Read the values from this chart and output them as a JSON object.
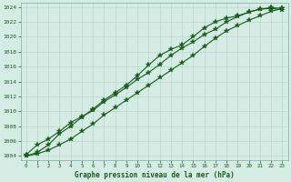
{
  "xlabel": "Graphe pression niveau de la mer (hPa)",
  "xlim": [
    0,
    23
  ],
  "ylim": [
    1004,
    1024
  ],
  "yticks": [
    1004,
    1006,
    1008,
    1010,
    1012,
    1014,
    1016,
    1018,
    1020,
    1022,
    1024
  ],
  "xticks": [
    0,
    1,
    2,
    3,
    4,
    5,
    6,
    7,
    8,
    9,
    10,
    11,
    12,
    13,
    14,
    15,
    16,
    17,
    18,
    19,
    20,
    21,
    22,
    23
  ],
  "bg_color": "#d5ece5",
  "grid_color": "#b8d8cf",
  "line_color": "#1a5c1a",
  "line_width": 0.8,
  "marker": "*",
  "marker_size": 4,
  "series1_x": [
    0,
    1,
    2,
    3,
    4,
    5,
    6,
    7,
    8,
    9,
    10,
    11,
    12,
    13,
    14,
    15,
    16,
    17,
    18,
    19,
    20,
    21,
    22,
    23
  ],
  "series1_y": [
    1004.2,
    1005.5,
    1006.3,
    1007.3,
    1008.5,
    1009.3,
    1010.1,
    1011.3,
    1012.2,
    1013.2,
    1014.3,
    1015.2,
    1016.3,
    1017.5,
    1018.5,
    1019.3,
    1020.3,
    1021.0,
    1022.0,
    1022.7,
    1023.3,
    1023.7,
    1023.8,
    1023.6
  ],
  "series2_x": [
    0,
    1,
    2,
    3,
    4,
    5,
    6,
    7,
    8,
    9,
    10,
    11,
    12,
    13,
    14,
    15,
    16,
    17,
    18,
    19,
    20,
    21,
    22,
    23
  ],
  "series2_y": [
    1004.0,
    1004.5,
    1005.5,
    1007.0,
    1008.0,
    1009.2,
    1010.3,
    1011.5,
    1012.5,
    1013.5,
    1014.8,
    1016.2,
    1017.5,
    1018.3,
    1018.9,
    1020.0,
    1021.2,
    1022.0,
    1022.5,
    1022.8,
    1023.3,
    1023.7,
    1023.9,
    1023.8
  ],
  "series3_x": [
    0,
    1,
    2,
    3,
    4,
    5,
    6,
    7,
    8,
    9,
    10,
    11,
    12,
    13,
    14,
    15,
    16,
    17,
    18,
    19,
    20,
    21,
    22,
    23
  ],
  "series3_y": [
    1004.0,
    1004.3,
    1004.8,
    1005.5,
    1006.3,
    1007.3,
    1008.3,
    1009.5,
    1010.5,
    1011.5,
    1012.5,
    1013.5,
    1014.5,
    1015.5,
    1016.5,
    1017.5,
    1018.7,
    1019.8,
    1020.8,
    1021.5,
    1022.2,
    1022.8,
    1023.4,
    1023.8
  ]
}
